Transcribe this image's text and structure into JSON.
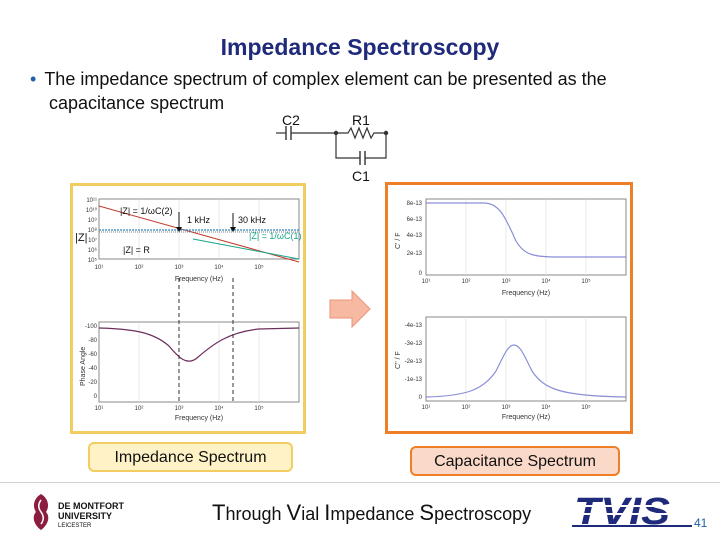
{
  "slide": {
    "title": "Impedance Spectroscopy",
    "bullet_line1": "The impedance spectrum of complex element can be presented as the",
    "bullet_line2": "capacitance spectrum",
    "page_number": "41",
    "footer": {
      "t": "T",
      "hrough": "hrough ",
      "v": "V",
      "ial": "ial ",
      "i": "I",
      "mpedance": "mpedance ",
      "s": "S",
      "pectroscopy": "pectroscopy"
    }
  },
  "circuit": {
    "c2": "C2",
    "r1": "R1",
    "c1": "C1"
  },
  "impedance_panel": {
    "caption": "Impedance Spectrum",
    "magnitude": {
      "z_axis_label": "|Z|",
      "y_ticks": [
        "10¹¹",
        "10¹⁰",
        "10⁹",
        "10⁸",
        "10⁷",
        "10⁶",
        "10⁵"
      ],
      "annotations": {
        "z_c2": "|Z| = 1/ωC(2)",
        "z_r": "|Z| = R",
        "z_c1": "|Z| = 1/ωC(1)",
        "f1": "1 kHz",
        "f2": "30 kHz"
      }
    },
    "phase": {
      "ylabel": "Phase Angle",
      "y_ticks": [
        "-100",
        "-80",
        "-60",
        "-40",
        "-20",
        "0"
      ]
    },
    "x_ticks": [
      "10¹",
      "10²",
      "10³",
      "10⁴",
      "10⁵"
    ],
    "xlabel": "Frequency (Hz)"
  },
  "capacitance_panel": {
    "caption": "Capacitance Spectrum",
    "c_real": {
      "ylabel": "C' / F",
      "y_ticks": [
        "8e-13",
        "6e-13",
        "4e-13",
        "2e-13",
        "0"
      ]
    },
    "c_imag": {
      "ylabel": "C'' / F",
      "y_ticks": [
        "-4e-13",
        "-3e-13",
        "-2e-13",
        "-1e-13",
        "0"
      ]
    },
    "x_ticks": [
      "10¹",
      "10²",
      "10³",
      "10⁴",
      "10⁵"
    ],
    "xlabel": "Frequency (Hz)"
  },
  "logos": {
    "dmu_line1": "DE MONTFORT",
    "dmu_line2": "UNIVERSITY",
    "dmu_line3": "LEICESTER",
    "tvis": "TVIS"
  },
  "colors": {
    "title": "#1f2a7a",
    "panel_left": "#f2cd62",
    "panel_right": "#ef7f26",
    "arrow": "#f7b9a1"
  }
}
